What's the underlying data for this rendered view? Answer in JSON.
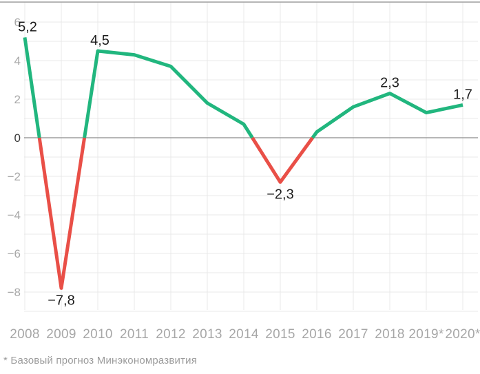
{
  "chart_data": {
    "type": "line",
    "categories": [
      "2008",
      "2009",
      "2010",
      "2011",
      "2012",
      "2013",
      "2014",
      "2015",
      "2016",
      "2017",
      "2018",
      "2019*",
      "2020*"
    ],
    "values": [
      5.2,
      -7.8,
      4.5,
      4.3,
      3.7,
      1.8,
      0.7,
      -2.3,
      0.3,
      1.6,
      2.3,
      1.3,
      1.7
    ],
    "point_labels": [
      {
        "index": 0,
        "text": "5,2",
        "placement": "above",
        "dx": 4
      },
      {
        "index": 1,
        "text": "−7,8",
        "placement": "below",
        "dx": 0
      },
      {
        "index": 2,
        "text": "4,5",
        "placement": "above",
        "dx": 3
      },
      {
        "index": 7,
        "text": "−2,3",
        "placement": "below",
        "dx": 0
      },
      {
        "index": 10,
        "text": "2,3",
        "placement": "above",
        "dx": 0
      },
      {
        "index": 12,
        "text": "1,7",
        "placement": "above",
        "dx": 0
      }
    ],
    "y_ticks": [
      {
        "value": 6,
        "label": "6"
      },
      {
        "value": 4,
        "label": "4"
      },
      {
        "value": 2,
        "label": "2"
      },
      {
        "value": 0,
        "label": "0"
      },
      {
        "value": -2,
        "label": "−2"
      },
      {
        "value": -4,
        "label": "−4"
      },
      {
        "value": -6,
        "label": "−6"
      },
      {
        "value": -8,
        "label": "−8"
      }
    ],
    "ylim": [
      -9,
      7
    ],
    "grid": true,
    "legend": "none",
    "colors": {
      "positive": "#21b67e",
      "negative": "#e94f47",
      "grid": "#e8e8e8",
      "zero_line": "#9d9d9d",
      "axis_text": "#a7a7a7",
      "zero_tick_text": "#3a3a3a",
      "label_text": "#1c1c1c"
    },
    "footnote": "* Базовый прогноз Минэкономразвития"
  }
}
